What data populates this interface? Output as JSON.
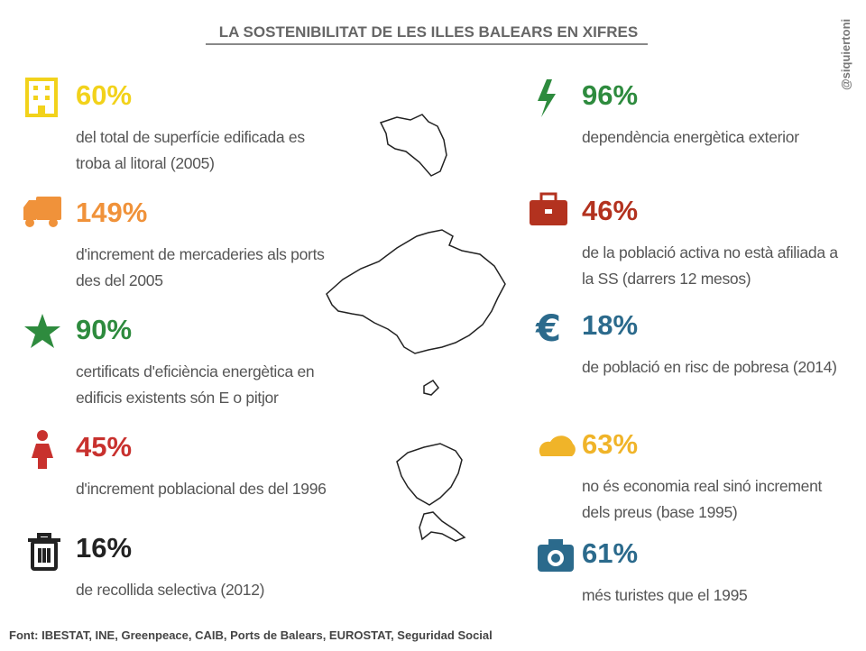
{
  "title": "LA SOSTENIBILITAT DE LES ILLES BALEARS EN XIFRES",
  "handle": "@siquiertoni",
  "left_items": [
    {
      "value": "60%",
      "description": [
        "del total de superfície edificada es",
        "troba al litoral (2005)"
      ]
    },
    {
      "value": "149%",
      "description": [
        "d'increment de mercaderies als ports",
        "des del 2005"
      ]
    },
    {
      "value": "90%",
      "description": [
        "certificats d'eficiència energètica en",
        "edificis existents són E o pitjor"
      ]
    },
    {
      "value": "45%",
      "description": [
        "d'increment poblacional des del 1996"
      ]
    },
    {
      "value": "16%",
      "description": [
        "de recollida selectiva (2012)"
      ]
    }
  ],
  "right_items": [
    {
      "value": "96%",
      "description": [
        "dependència energètica exterior"
      ]
    },
    {
      "value": "46%",
      "description": [
        "de la població activa no està afiliada a",
        "la SS (darrers 12 mesos)"
      ]
    },
    {
      "value": "18%",
      "description": [
        "de població en risc de pobresa (2014)"
      ]
    },
    {
      "value": "63%",
      "description": [
        "no és economia real sinó increment",
        "dels preus (base 1995)"
      ]
    },
    {
      "value": "61%",
      "description": [
        "més turistes que el 1995"
      ]
    }
  ],
  "source": "Font: IBESTAT, INE, Greenpeace, CAIB, Ports de Balears, EUROSTAT, Seguridad Social"
}
